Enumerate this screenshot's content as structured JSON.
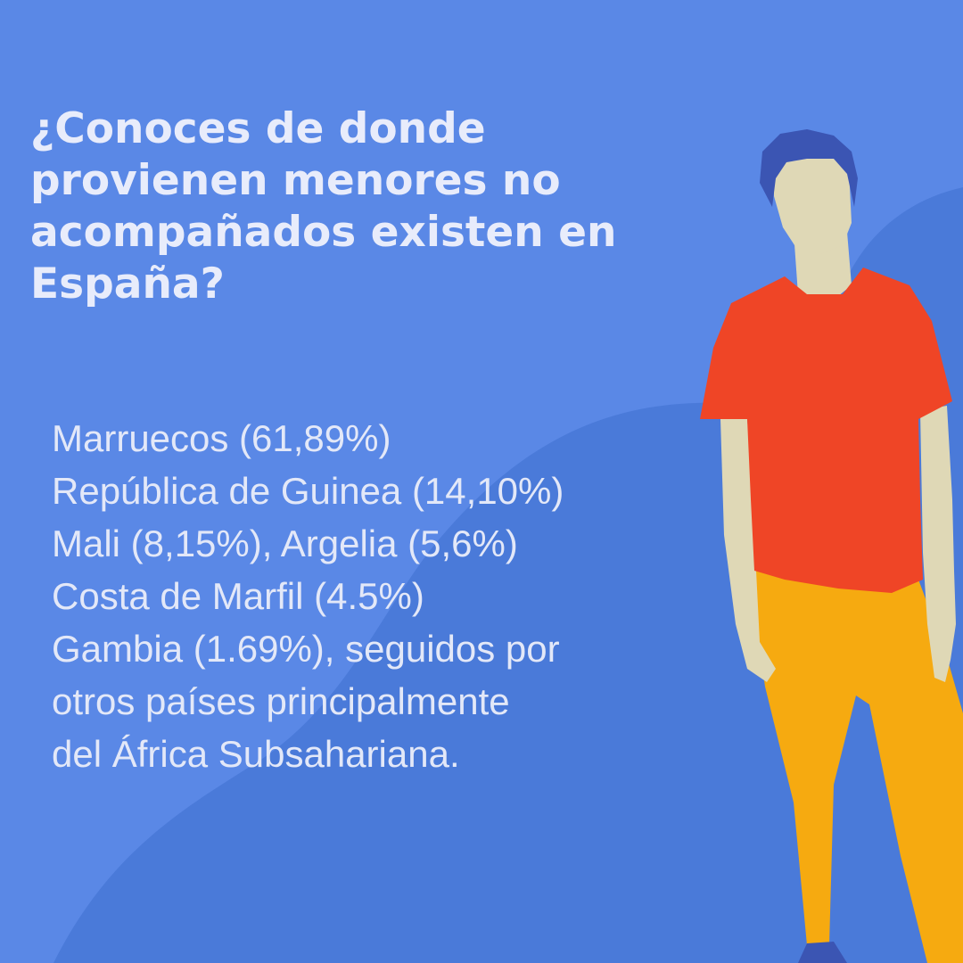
{
  "headline": {
    "line1": "¿Conoces de donde",
    "line2": "provienen menores no",
    "line3": "acompañados existen en",
    "line4": "España?"
  },
  "body_lines": [
    "Marruecos (61,89%)",
    "República de Guinea (14,10%)",
    "Mali (8,15%), Argelia (5,6%)",
    "Costa de Marfil (4.5%)",
    "Gambia (1.69%), seguidos por",
    "otros países principalmente",
    "del África Subsahariana."
  ],
  "colors": {
    "background": "#5a88e6",
    "background_shape": "#4a7ad9",
    "text": "#e3e8f8",
    "shirt": "#ef4526",
    "pants": "#f6aa10",
    "skin": "#dfd8b6",
    "hair": "#3b55b3"
  },
  "illustration": "person-standing-icon"
}
